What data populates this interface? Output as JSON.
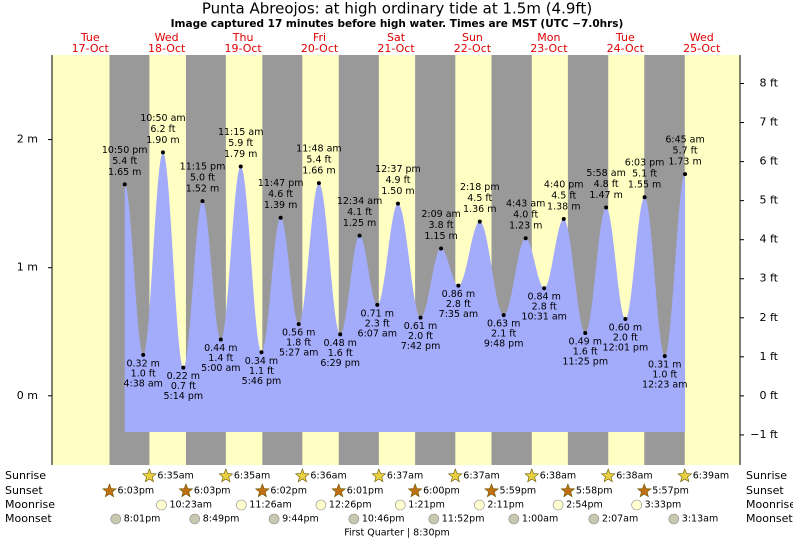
{
  "chart_data": {
    "type": "tide",
    "title": "Punta Abreojos: at high  ordinary tide at 1.5m (4.9ft)",
    "subtitle": "Image captured 17 minutes before high water. Times are MST (UTC −7.0hrs)",
    "ylim": [
      -0.54,
      2.66
    ],
    "yticks": [
      {
        "value": 0,
        "label": "0 m"
      },
      {
        "value": 1,
        "label": "1 m"
      },
      {
        "value": 2,
        "label": "2 m"
      }
    ],
    "y2lim": [
      -1.77,
      8.73
    ],
    "y2ticks": [
      {
        "value": -1,
        "label": "−1 ft"
      },
      {
        "value": 0,
        "label": "0 ft"
      },
      {
        "value": 1,
        "label": "1 ft"
      },
      {
        "value": 2,
        "label": "2 ft"
      },
      {
        "value": 3,
        "label": "3 ft"
      },
      {
        "value": 4,
        "label": "4 ft"
      },
      {
        "value": 5,
        "label": "5 ft"
      },
      {
        "value": 6,
        "label": "6 ft"
      },
      {
        "value": 7,
        "label": "7 ft"
      },
      {
        "value": 8,
        "label": "8 ft"
      }
    ],
    "color": "#a3abfb",
    "rows": {
      "sunrise": "Sunrise",
      "sunset": "Sunset",
      "moonrise": "Moonrise",
      "moonset": "Moonset"
    },
    "moon_phase": "First Quarter | 8:30pm",
    "days": [
      {
        "day": "Tue",
        "date": "17-Oct",
        "sunrise": null,
        "sunset": "6:03pm",
        "moonrise": null,
        "moonset": "8:01pm",
        "tides": [
          {
            "time": "10:50 pm",
            "feet": "5.4 ft",
            "value": 1.65,
            "value_label": "1.65 m"
          }
        ]
      },
      {
        "day": "Wed",
        "date": "18-Oct",
        "sunrise": "6:35am",
        "sunset": "6:03pm",
        "moonrise": "10:23am",
        "moonset": "8:49pm",
        "tides": [
          {
            "time": "4:38 am",
            "feet": "1.0 ft",
            "value": 0.32,
            "value_label": "0.32 m"
          },
          {
            "time": "10:50 am",
            "feet": "6.2 ft",
            "value": 1.9,
            "value_label": "1.90 m"
          },
          {
            "time": "5:14 pm",
            "feet": "0.7 ft",
            "value": 0.22,
            "value_label": "0.22 m"
          },
          {
            "time": "11:15 pm",
            "feet": "5.0 ft",
            "value": 1.52,
            "value_label": "1.52 m"
          }
        ]
      },
      {
        "day": "Thu",
        "date": "19-Oct",
        "sunrise": "6:35am",
        "sunset": "6:02pm",
        "moonrise": "11:26am",
        "moonset": "9:44pm",
        "tides": [
          {
            "time": "5:00 am",
            "feet": "1.4 ft",
            "value": 0.44,
            "value_label": "0.44 m"
          },
          {
            "time": "11:15 am",
            "feet": "5.9 ft",
            "value": 1.79,
            "value_label": "1.79 m"
          },
          {
            "time": "5:46 pm",
            "feet": "1.1 ft",
            "value": 0.34,
            "value_label": "0.34 m"
          },
          {
            "time": "11:47 pm",
            "feet": "4.6 ft",
            "value": 1.39,
            "value_label": "1.39 m"
          }
        ]
      },
      {
        "day": "Fri",
        "date": "20-Oct",
        "sunrise": "6:36am",
        "sunset": "6:01pm",
        "moonrise": "12:26pm",
        "moonset": "10:46pm",
        "tides": [
          {
            "time": "5:27 am",
            "feet": "1.8 ft",
            "value": 0.56,
            "value_label": "0.56 m"
          },
          {
            "time": "11:48 am",
            "feet": "5.4 ft",
            "value": 1.66,
            "value_label": "1.66 m"
          },
          {
            "time": "6:29 pm",
            "feet": "1.6 ft",
            "value": 0.48,
            "value_label": "0.48 m"
          }
        ]
      },
      {
        "day": "Sat",
        "date": "21-Oct",
        "sunrise": "6:37am",
        "sunset": "6:00pm",
        "moonrise": "1:21pm",
        "moonset": "11:52pm",
        "tides": [
          {
            "time": "12:34 am",
            "feet": "4.1 ft",
            "value": 1.25,
            "value_label": "1.25 m"
          },
          {
            "time": "6:07 am",
            "feet": "2.3 ft",
            "value": 0.71,
            "value_label": "0.71 m"
          },
          {
            "time": "12:37 pm",
            "feet": "4.9 ft",
            "value": 1.5,
            "value_label": "1.50 m"
          },
          {
            "time": "7:42 pm",
            "feet": "2.0 ft",
            "value": 0.61,
            "value_label": "0.61 m"
          }
        ]
      },
      {
        "day": "Sun",
        "date": "22-Oct",
        "sunrise": "6:37am",
        "sunset": "5:59pm",
        "moonrise": "2:11pm",
        "moonset": null,
        "tides": [
          {
            "time": "2:09 am",
            "feet": "3.8 ft",
            "value": 1.15,
            "value_label": "1.15 m"
          },
          {
            "time": "7:35 am",
            "feet": "2.8 ft",
            "value": 0.86,
            "value_label": "0.86 m"
          },
          {
            "time": "2:18 pm",
            "feet": "4.5 ft",
            "value": 1.36,
            "value_label": "1.36 m"
          },
          {
            "time": "9:48 pm",
            "feet": "2.1 ft",
            "value": 0.63,
            "value_label": "0.63 m"
          }
        ]
      },
      {
        "day": "Mon",
        "date": "23-Oct",
        "sunrise": "6:38am",
        "sunset": "5:58pm",
        "moonrise": "2:54pm",
        "moonset": "1:00am",
        "tides": [
          {
            "time": "4:43 am",
            "feet": "4.0 ft",
            "value": 1.23,
            "value_label": "1.23 m"
          },
          {
            "time": "10:31 am",
            "feet": "2.8 ft",
            "value": 0.84,
            "value_label": "0.84 m"
          },
          {
            "time": "4:40 pm",
            "feet": "4.5 ft",
            "value": 1.38,
            "value_label": "1.38 m"
          },
          {
            "time": "11:25 pm",
            "feet": "1.6 ft",
            "value": 0.49,
            "value_label": "0.49 m"
          }
        ]
      },
      {
        "day": "Tue",
        "date": "24-Oct",
        "sunrise": "6:38am",
        "sunset": "5:57pm",
        "moonrise": "3:33pm",
        "moonset": "2:07am",
        "tides": [
          {
            "time": "5:58 am",
            "feet": "4.8 ft",
            "value": 1.47,
            "value_label": "1.47 m"
          },
          {
            "time": "12:01 pm",
            "feet": "2.0 ft",
            "value": 0.6,
            "value_label": "0.60 m"
          },
          {
            "time": "6:03 pm",
            "feet": "5.1 ft",
            "value": 1.55,
            "value_label": "1.55 m"
          }
        ]
      },
      {
        "day": "Wed",
        "date": "25-Oct",
        "sunrise": "6:39am",
        "sunset": null,
        "moonrise": null,
        "moonset": "3:13am",
        "tides": [
          {
            "time": "12:23 am",
            "feet": "1.0 ft",
            "value": 0.31,
            "value_label": "0.31 m"
          },
          {
            "time": "6:45 am",
            "feet": "5.7 ft",
            "value": 1.73,
            "value_label": "1.73 m"
          }
        ]
      }
    ]
  }
}
